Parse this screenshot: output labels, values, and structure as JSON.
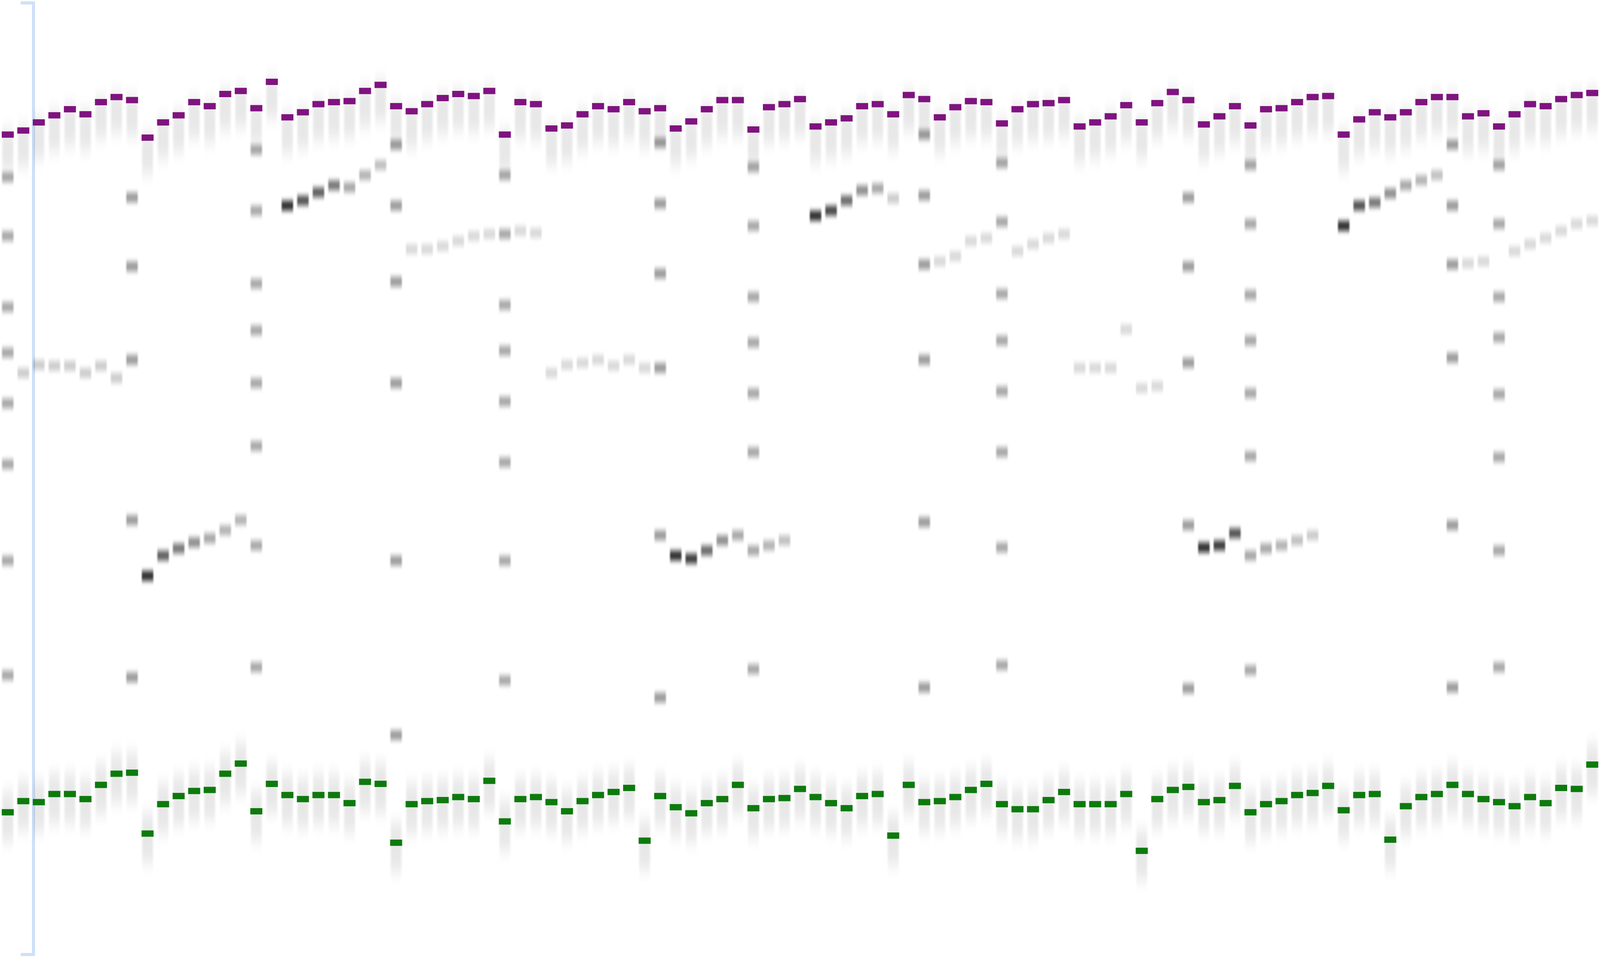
{
  "chart_data": {
    "type": "gel",
    "ylim": [
      0,
      938
    ],
    "tick_labels": false,
    "series": [
      {
        "color": "#7f137f",
        "values": [
          130,
          126,
          118,
          111,
          105,
          110,
          98,
          93,
          96,
          133,
          118,
          111,
          98,
          102,
          90,
          87,
          104,
          78,
          113,
          108,
          100,
          98,
          97,
          87,
          81,
          102,
          107,
          100,
          94,
          90,
          92,
          87,
          130,
          98,
          100,
          124,
          121,
          110,
          102,
          105,
          98,
          107,
          104,
          124,
          117,
          105,
          96,
          96,
          125,
          103,
          100,
          95,
          122,
          118,
          114,
          102,
          100,
          110,
          91,
          95,
          113,
          103,
          97,
          98,
          119,
          105,
          100,
          99,
          96,
          122,
          118,
          112,
          101,
          118,
          99,
          88,
          96,
          120,
          112,
          102,
          121,
          105,
          104,
          98,
          93,
          92,
          130,
          115,
          108,
          113,
          108,
          98,
          93,
          93,
          112,
          109,
          122,
          110,
          100,
          102,
          95,
          91,
          89
        ]
      },
      {
        "color": "#0d7a0d",
        "values": [
          798,
          787,
          788,
          780,
          780,
          785,
          771,
          760,
          759,
          819,
          790,
          782,
          777,
          776,
          760,
          750,
          797,
          770,
          781,
          785,
          781,
          781,
          789,
          768,
          770,
          828,
          790,
          787,
          786,
          783,
          785,
          767,
          807,
          785,
          783,
          788,
          797,
          787,
          781,
          778,
          774,
          826,
          782,
          793,
          799,
          789,
          785,
          771,
          794,
          785,
          784,
          775,
          783,
          789,
          794,
          782,
          780,
          821,
          771,
          788,
          787,
          783,
          776,
          770,
          790,
          795,
          795,
          786,
          778,
          790,
          790,
          790,
          780,
          836,
          785,
          776,
          773,
          788,
          786,
          772,
          798,
          790,
          787,
          781,
          779,
          772,
          796,
          781,
          780,
          825,
          792,
          783,
          780,
          771,
          780,
          785,
          788,
          792,
          783,
          789,
          774,
          775,
          751
        ]
      }
    ],
    "bands": [
      {
        "lane": 0,
        "position": 172,
        "intensity": 0.35
      },
      {
        "lane": 0,
        "position": 230,
        "intensity": 0.35
      },
      {
        "lane": 0,
        "position": 300,
        "intensity": 0.35
      },
      {
        "lane": 0,
        "position": 345,
        "intensity": 0.35
      },
      {
        "lane": 0,
        "position": 395,
        "intensity": 0.35
      },
      {
        "lane": 0,
        "position": 455,
        "intensity": 0.35
      },
      {
        "lane": 0,
        "position": 550,
        "intensity": 0.35
      },
      {
        "lane": 0,
        "position": 663,
        "intensity": 0.35
      },
      {
        "lane": 8,
        "position": 192,
        "intensity": 0.4
      },
      {
        "lane": 8,
        "position": 260,
        "intensity": 0.4
      },
      {
        "lane": 8,
        "position": 352,
        "intensity": 0.4
      },
      {
        "lane": 8,
        "position": 510,
        "intensity": 0.4
      },
      {
        "lane": 8,
        "position": 665,
        "intensity": 0.4
      },
      {
        "lane": 16,
        "position": 145,
        "intensity": 0.35
      },
      {
        "lane": 16,
        "position": 205,
        "intensity": 0.35
      },
      {
        "lane": 16,
        "position": 277,
        "intensity": 0.35
      },
      {
        "lane": 16,
        "position": 323,
        "intensity": 0.35
      },
      {
        "lane": 16,
        "position": 375,
        "intensity": 0.35
      },
      {
        "lane": 16,
        "position": 437,
        "intensity": 0.35
      },
      {
        "lane": 16,
        "position": 535,
        "intensity": 0.35
      },
      {
        "lane": 16,
        "position": 655,
        "intensity": 0.35
      },
      {
        "lane": 25,
        "position": 140,
        "intensity": 0.4
      },
      {
        "lane": 25,
        "position": 200,
        "intensity": 0.4
      },
      {
        "lane": 25,
        "position": 275,
        "intensity": 0.4
      },
      {
        "lane": 25,
        "position": 375,
        "intensity": 0.4
      },
      {
        "lane": 25,
        "position": 550,
        "intensity": 0.4
      },
      {
        "lane": 25,
        "position": 722,
        "intensity": 0.4
      },
      {
        "lane": 32,
        "position": 170,
        "intensity": 0.35
      },
      {
        "lane": 32,
        "position": 228,
        "intensity": 0.35
      },
      {
        "lane": 32,
        "position": 298,
        "intensity": 0.35
      },
      {
        "lane": 32,
        "position": 343,
        "intensity": 0.35
      },
      {
        "lane": 32,
        "position": 393,
        "intensity": 0.35
      },
      {
        "lane": 32,
        "position": 453,
        "intensity": 0.35
      },
      {
        "lane": 32,
        "position": 550,
        "intensity": 0.35
      },
      {
        "lane": 32,
        "position": 668,
        "intensity": 0.35
      },
      {
        "lane": 42,
        "position": 138,
        "intensity": 0.4
      },
      {
        "lane": 42,
        "position": 198,
        "intensity": 0.4
      },
      {
        "lane": 42,
        "position": 267,
        "intensity": 0.4
      },
      {
        "lane": 42,
        "position": 360,
        "intensity": 0.4
      },
      {
        "lane": 42,
        "position": 525,
        "intensity": 0.4
      },
      {
        "lane": 42,
        "position": 685,
        "intensity": 0.4
      },
      {
        "lane": 48,
        "position": 162,
        "intensity": 0.35
      },
      {
        "lane": 48,
        "position": 220,
        "intensity": 0.35
      },
      {
        "lane": 48,
        "position": 290,
        "intensity": 0.35
      },
      {
        "lane": 48,
        "position": 335,
        "intensity": 0.35
      },
      {
        "lane": 48,
        "position": 385,
        "intensity": 0.35
      },
      {
        "lane": 48,
        "position": 443,
        "intensity": 0.35
      },
      {
        "lane": 48,
        "position": 540,
        "intensity": 0.35
      },
      {
        "lane": 48,
        "position": 657,
        "intensity": 0.35
      },
      {
        "lane": 59,
        "position": 130,
        "intensity": 0.4
      },
      {
        "lane": 59,
        "position": 190,
        "intensity": 0.4
      },
      {
        "lane": 59,
        "position": 258,
        "intensity": 0.4
      },
      {
        "lane": 59,
        "position": 352,
        "intensity": 0.4
      },
      {
        "lane": 59,
        "position": 512,
        "intensity": 0.4
      },
      {
        "lane": 59,
        "position": 675,
        "intensity": 0.4
      },
      {
        "lane": 64,
        "position": 158,
        "intensity": 0.35
      },
      {
        "lane": 64,
        "position": 216,
        "intensity": 0.35
      },
      {
        "lane": 64,
        "position": 287,
        "intensity": 0.35
      },
      {
        "lane": 64,
        "position": 333,
        "intensity": 0.35
      },
      {
        "lane": 64,
        "position": 383,
        "intensity": 0.35
      },
      {
        "lane": 64,
        "position": 443,
        "intensity": 0.35
      },
      {
        "lane": 64,
        "position": 537,
        "intensity": 0.35
      },
      {
        "lane": 64,
        "position": 653,
        "intensity": 0.35
      },
      {
        "lane": 76,
        "position": 192,
        "intensity": 0.4
      },
      {
        "lane": 76,
        "position": 260,
        "intensity": 0.4
      },
      {
        "lane": 76,
        "position": 355,
        "intensity": 0.4
      },
      {
        "lane": 76,
        "position": 515,
        "intensity": 0.4
      },
      {
        "lane": 76,
        "position": 676,
        "intensity": 0.4
      },
      {
        "lane": 80,
        "position": 160,
        "intensity": 0.35
      },
      {
        "lane": 80,
        "position": 218,
        "intensity": 0.35
      },
      {
        "lane": 80,
        "position": 288,
        "intensity": 0.35
      },
      {
        "lane": 80,
        "position": 333,
        "intensity": 0.35
      },
      {
        "lane": 80,
        "position": 385,
        "intensity": 0.35
      },
      {
        "lane": 80,
        "position": 447,
        "intensity": 0.35
      },
      {
        "lane": 80,
        "position": 545,
        "intensity": 0.35
      },
      {
        "lane": 80,
        "position": 658,
        "intensity": 0.35
      },
      {
        "lane": 93,
        "position": 140,
        "intensity": 0.4
      },
      {
        "lane": 93,
        "position": 200,
        "intensity": 0.4
      },
      {
        "lane": 93,
        "position": 258,
        "intensity": 0.4
      },
      {
        "lane": 93,
        "position": 350,
        "intensity": 0.4
      },
      {
        "lane": 93,
        "position": 515,
        "intensity": 0.4
      },
      {
        "lane": 93,
        "position": 675,
        "intensity": 0.4
      },
      {
        "lane": 96,
        "position": 160,
        "intensity": 0.35
      },
      {
        "lane": 96,
        "position": 218,
        "intensity": 0.35
      },
      {
        "lane": 96,
        "position": 290,
        "intensity": 0.35
      },
      {
        "lane": 96,
        "position": 330,
        "intensity": 0.35
      },
      {
        "lane": 96,
        "position": 386,
        "intensity": 0.35
      },
      {
        "lane": 96,
        "position": 448,
        "intensity": 0.35
      },
      {
        "lane": 96,
        "position": 540,
        "intensity": 0.35
      },
      {
        "lane": 96,
        "position": 655,
        "intensity": 0.35
      },
      {
        "lane": 9,
        "position": 565,
        "intensity": 0.85
      },
      {
        "lane": 10,
        "position": 545,
        "intensity": 0.65
      },
      {
        "lane": 11,
        "position": 538,
        "intensity": 0.55
      },
      {
        "lane": 12,
        "position": 532,
        "intensity": 0.45
      },
      {
        "lane": 13,
        "position": 528,
        "intensity": 0.35
      },
      {
        "lane": 14,
        "position": 520,
        "intensity": 0.3
      },
      {
        "lane": 15,
        "position": 510,
        "intensity": 0.3
      },
      {
        "lane": 18,
        "position": 200,
        "intensity": 0.85
      },
      {
        "lane": 19,
        "position": 195,
        "intensity": 0.7
      },
      {
        "lane": 20,
        "position": 187,
        "intensity": 0.65
      },
      {
        "lane": 21,
        "position": 180,
        "intensity": 0.55
      },
      {
        "lane": 22,
        "position": 182,
        "intensity": 0.35
      },
      {
        "lane": 23,
        "position": 170,
        "intensity": 0.3
      },
      {
        "lane": 24,
        "position": 160,
        "intensity": 0.25
      },
      {
        "lane": 43,
        "position": 545,
        "intensity": 0.85
      },
      {
        "lane": 44,
        "position": 548,
        "intensity": 0.8
      },
      {
        "lane": 45,
        "position": 540,
        "intensity": 0.6
      },
      {
        "lane": 46,
        "position": 530,
        "intensity": 0.45
      },
      {
        "lane": 47,
        "position": 525,
        "intensity": 0.35
      },
      {
        "lane": 49,
        "position": 535,
        "intensity": 0.3
      },
      {
        "lane": 50,
        "position": 530,
        "intensity": 0.25
      },
      {
        "lane": 52,
        "position": 210,
        "intensity": 0.85
      },
      {
        "lane": 53,
        "position": 205,
        "intensity": 0.75
      },
      {
        "lane": 54,
        "position": 195,
        "intensity": 0.6
      },
      {
        "lane": 55,
        "position": 185,
        "intensity": 0.45
      },
      {
        "lane": 56,
        "position": 183,
        "intensity": 0.35
      },
      {
        "lane": 57,
        "position": 193,
        "intensity": 0.2
      },
      {
        "lane": 77,
        "position": 537,
        "intensity": 0.85
      },
      {
        "lane": 78,
        "position": 535,
        "intensity": 0.8
      },
      {
        "lane": 79,
        "position": 523,
        "intensity": 0.7
      },
      {
        "lane": 81,
        "position": 538,
        "intensity": 0.35
      },
      {
        "lane": 82,
        "position": 535,
        "intensity": 0.3
      },
      {
        "lane": 83,
        "position": 530,
        "intensity": 0.25
      },
      {
        "lane": 84,
        "position": 525,
        "intensity": 0.2
      },
      {
        "lane": 86,
        "position": 220,
        "intensity": 0.85
      },
      {
        "lane": 87,
        "position": 200,
        "intensity": 0.7
      },
      {
        "lane": 88,
        "position": 197,
        "intensity": 0.55
      },
      {
        "lane": 89,
        "position": 188,
        "intensity": 0.45
      },
      {
        "lane": 90,
        "position": 180,
        "intensity": 0.35
      },
      {
        "lane": 91,
        "position": 175,
        "intensity": 0.3
      },
      {
        "lane": 92,
        "position": 170,
        "intensity": 0.25
      },
      {
        "lane": 1,
        "position": 365,
        "intensity": 0.2
      },
      {
        "lane": 2,
        "position": 357,
        "intensity": 0.2
      },
      {
        "lane": 3,
        "position": 358,
        "intensity": 0.2
      },
      {
        "lane": 4,
        "position": 358,
        "intensity": 0.2
      },
      {
        "lane": 5,
        "position": 365,
        "intensity": 0.2
      },
      {
        "lane": 6,
        "position": 358,
        "intensity": 0.2
      },
      {
        "lane": 7,
        "position": 370,
        "intensity": 0.2
      },
      {
        "lane": 26,
        "position": 243,
        "intensity": 0.15
      },
      {
        "lane": 27,
        "position": 243,
        "intensity": 0.15
      },
      {
        "lane": 28,
        "position": 240,
        "intensity": 0.15
      },
      {
        "lane": 29,
        "position": 235,
        "intensity": 0.15
      },
      {
        "lane": 30,
        "position": 230,
        "intensity": 0.15
      },
      {
        "lane": 31,
        "position": 228,
        "intensity": 0.15
      },
      {
        "lane": 33,
        "position": 225,
        "intensity": 0.15
      },
      {
        "lane": 34,
        "position": 227,
        "intensity": 0.15
      },
      {
        "lane": 35,
        "position": 365,
        "intensity": 0.15
      },
      {
        "lane": 36,
        "position": 357,
        "intensity": 0.15
      },
      {
        "lane": 37,
        "position": 355,
        "intensity": 0.15
      },
      {
        "lane": 38,
        "position": 352,
        "intensity": 0.15
      },
      {
        "lane": 39,
        "position": 358,
        "intensity": 0.15
      },
      {
        "lane": 40,
        "position": 352,
        "intensity": 0.15
      },
      {
        "lane": 41,
        "position": 360,
        "intensity": 0.15
      },
      {
        "lane": 60,
        "position": 255,
        "intensity": 0.15
      },
      {
        "lane": 61,
        "position": 250,
        "intensity": 0.15
      },
      {
        "lane": 62,
        "position": 235,
        "intensity": 0.15
      },
      {
        "lane": 63,
        "position": 232,
        "intensity": 0.15
      },
      {
        "lane": 65,
        "position": 245,
        "intensity": 0.15
      },
      {
        "lane": 66,
        "position": 238,
        "intensity": 0.15
      },
      {
        "lane": 67,
        "position": 232,
        "intensity": 0.15
      },
      {
        "lane": 68,
        "position": 228,
        "intensity": 0.15
      },
      {
        "lane": 69,
        "position": 360,
        "intensity": 0.15
      },
      {
        "lane": 70,
        "position": 360,
        "intensity": 0.15
      },
      {
        "lane": 71,
        "position": 360,
        "intensity": 0.15
      },
      {
        "lane": 72,
        "position": 322,
        "intensity": 0.15
      },
      {
        "lane": 73,
        "position": 380,
        "intensity": 0.15
      },
      {
        "lane": 74,
        "position": 378,
        "intensity": 0.15
      },
      {
        "lane": 94,
        "position": 257,
        "intensity": 0.15
      },
      {
        "lane": 95,
        "position": 255,
        "intensity": 0.15
      },
      {
        "lane": 97,
        "position": 245,
        "intensity": 0.15
      },
      {
        "lane": 98,
        "position": 238,
        "intensity": 0.15
      },
      {
        "lane": 99,
        "position": 232,
        "intensity": 0.15
      },
      {
        "lane": 100,
        "position": 225,
        "intensity": 0.15
      },
      {
        "lane": 101,
        "position": 218,
        "intensity": 0.15
      },
      {
        "lane": 102,
        "position": 215,
        "intensity": 0.15
      }
    ]
  }
}
